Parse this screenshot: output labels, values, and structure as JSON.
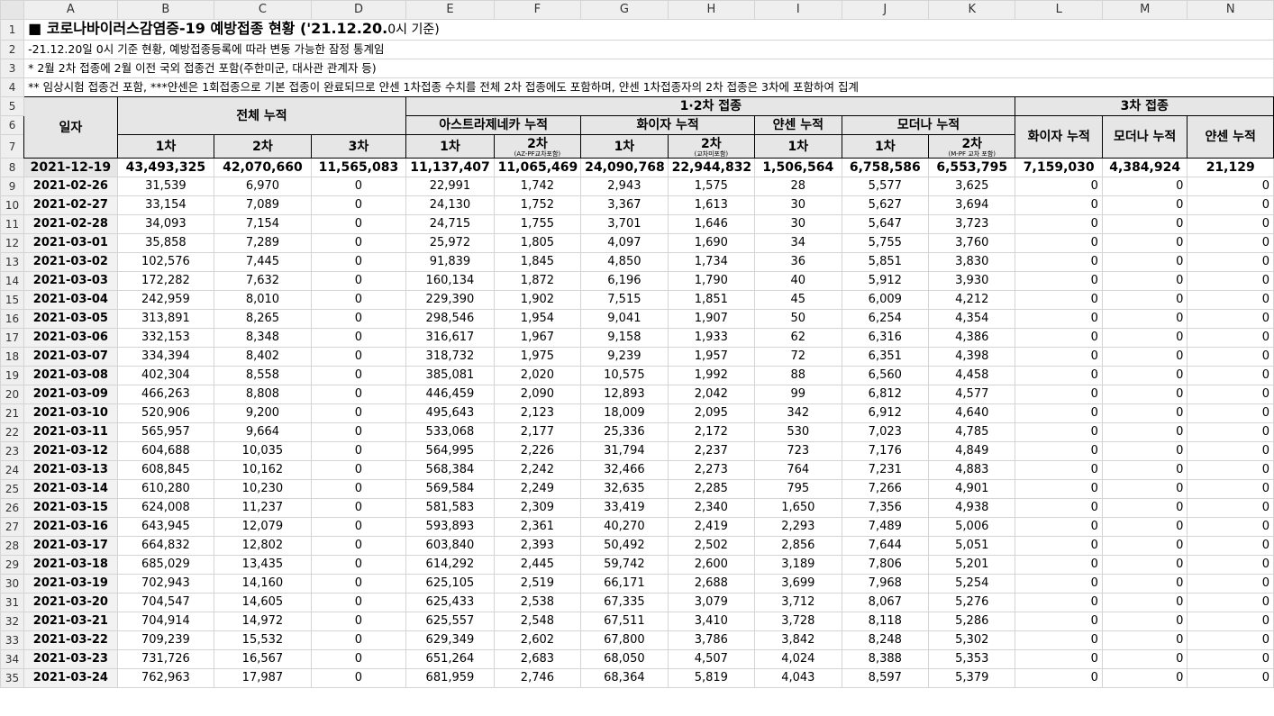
{
  "columns": [
    "A",
    "B",
    "C",
    "D",
    "E",
    "F",
    "G",
    "H",
    "I",
    "J",
    "K",
    "L",
    "M",
    "N"
  ],
  "title": {
    "square_icon": "■",
    "main": "코로나바이러스감염증-19 예방접종 현황 (",
    "date": "'21.12.20.",
    "tail": "0시 기준)"
  },
  "notes": [
    "-21.12.20일 0시 기준 현황, 예방접종등록에 따라 변동 가능한 잠정 통계임",
    " * 2월 2차 접종에 2월 이전 국외 접종건 포함(주한미군, 대사관 관계자 등)",
    "** 임상시험 접종건 포함, ***얀센은 1회접종으로 기본 접종이 완료되므로 얀센 1차접종 수치를 전체 2차 접종에도 포함하며, 얀센 1차접종자의 2차 접종은 3차에 포함하여 집계"
  ],
  "headers": {
    "date": "일자",
    "total_cum": "전체 누적",
    "dose12": "1·2차 접종",
    "dose3": "3차 접종",
    "az": "아스트라제네카 누적",
    "pfizer": "화이자 누적",
    "janssen": "얀센 누적",
    "moderna": "모더나 누적",
    "first": "1차",
    "second": "2차",
    "third": "3차",
    "az_note": "(AZ-PF교차포함)",
    "pf_note": "(교차미포함)",
    "md_note": "(M-PF 교차 포함)",
    "pfizer3": "화이자 누적",
    "moderna3": "모더나 누적",
    "janssen3": "얀센 누적"
  },
  "total": {
    "date": "2021-12-19",
    "values": [
      "43,493,325",
      "42,070,660",
      "11,565,083",
      "11,137,407",
      "11,065,469",
      "24,090,768",
      "22,944,832",
      "1,506,564",
      "6,758,586",
      "6,553,795",
      "7,159,030",
      "4,384,924",
      "21,129"
    ]
  },
  "rows": [
    {
      "date": "2021-02-26",
      "values": [
        "31,539",
        "6,970",
        "0",
        "22,991",
        "1,742",
        "2,943",
        "1,575",
        "28",
        "5,577",
        "3,625",
        "0",
        "0",
        "0"
      ]
    },
    {
      "date": "2021-02-27",
      "values": [
        "33,154",
        "7,089",
        "0",
        "24,130",
        "1,752",
        "3,367",
        "1,613",
        "30",
        "5,627",
        "3,694",
        "0",
        "0",
        "0"
      ]
    },
    {
      "date": "2021-02-28",
      "values": [
        "34,093",
        "7,154",
        "0",
        "24,715",
        "1,755",
        "3,701",
        "1,646",
        "30",
        "5,647",
        "3,723",
        "0",
        "0",
        "0"
      ]
    },
    {
      "date": "2021-03-01",
      "values": [
        "35,858",
        "7,289",
        "0",
        "25,972",
        "1,805",
        "4,097",
        "1,690",
        "34",
        "5,755",
        "3,760",
        "0",
        "0",
        "0"
      ]
    },
    {
      "date": "2021-03-02",
      "values": [
        "102,576",
        "7,445",
        "0",
        "91,839",
        "1,845",
        "4,850",
        "1,734",
        "36",
        "5,851",
        "3,830",
        "0",
        "0",
        "0"
      ]
    },
    {
      "date": "2021-03-03",
      "values": [
        "172,282",
        "7,632",
        "0",
        "160,134",
        "1,872",
        "6,196",
        "1,790",
        "40",
        "5,912",
        "3,930",
        "0",
        "0",
        "0"
      ]
    },
    {
      "date": "2021-03-04",
      "values": [
        "242,959",
        "8,010",
        "0",
        "229,390",
        "1,902",
        "7,515",
        "1,851",
        "45",
        "6,009",
        "4,212",
        "0",
        "0",
        "0"
      ]
    },
    {
      "date": "2021-03-05",
      "values": [
        "313,891",
        "8,265",
        "0",
        "298,546",
        "1,954",
        "9,041",
        "1,907",
        "50",
        "6,254",
        "4,354",
        "0",
        "0",
        "0"
      ]
    },
    {
      "date": "2021-03-06",
      "values": [
        "332,153",
        "8,348",
        "0",
        "316,617",
        "1,967",
        "9,158",
        "1,933",
        "62",
        "6,316",
        "4,386",
        "0",
        "0",
        "0"
      ]
    },
    {
      "date": "2021-03-07",
      "values": [
        "334,394",
        "8,402",
        "0",
        "318,732",
        "1,975",
        "9,239",
        "1,957",
        "72",
        "6,351",
        "4,398",
        "0",
        "0",
        "0"
      ]
    },
    {
      "date": "2021-03-08",
      "values": [
        "402,304",
        "8,558",
        "0",
        "385,081",
        "2,020",
        "10,575",
        "1,992",
        "88",
        "6,560",
        "4,458",
        "0",
        "0",
        "0"
      ]
    },
    {
      "date": "2021-03-09",
      "values": [
        "466,263",
        "8,808",
        "0",
        "446,459",
        "2,090",
        "12,893",
        "2,042",
        "99",
        "6,812",
        "4,577",
        "0",
        "0",
        "0"
      ]
    },
    {
      "date": "2021-03-10",
      "values": [
        "520,906",
        "9,200",
        "0",
        "495,643",
        "2,123",
        "18,009",
        "2,095",
        "342",
        "6,912",
        "4,640",
        "0",
        "0",
        "0"
      ]
    },
    {
      "date": "2021-03-11",
      "values": [
        "565,957",
        "9,664",
        "0",
        "533,068",
        "2,177",
        "25,336",
        "2,172",
        "530",
        "7,023",
        "4,785",
        "0",
        "0",
        "0"
      ]
    },
    {
      "date": "2021-03-12",
      "values": [
        "604,688",
        "10,035",
        "0",
        "564,995",
        "2,226",
        "31,794",
        "2,237",
        "723",
        "7,176",
        "4,849",
        "0",
        "0",
        "0"
      ]
    },
    {
      "date": "2021-03-13",
      "values": [
        "608,845",
        "10,162",
        "0",
        "568,384",
        "2,242",
        "32,466",
        "2,273",
        "764",
        "7,231",
        "4,883",
        "0",
        "0",
        "0"
      ]
    },
    {
      "date": "2021-03-14",
      "values": [
        "610,280",
        "10,230",
        "0",
        "569,584",
        "2,249",
        "32,635",
        "2,285",
        "795",
        "7,266",
        "4,901",
        "0",
        "0",
        "0"
      ]
    },
    {
      "date": "2021-03-15",
      "values": [
        "624,008",
        "11,237",
        "0",
        "581,583",
        "2,309",
        "33,419",
        "2,340",
        "1,650",
        "7,356",
        "4,938",
        "0",
        "0",
        "0"
      ]
    },
    {
      "date": "2021-03-16",
      "values": [
        "643,945",
        "12,079",
        "0",
        "593,893",
        "2,361",
        "40,270",
        "2,419",
        "2,293",
        "7,489",
        "5,006",
        "0",
        "0",
        "0"
      ]
    },
    {
      "date": "2021-03-17",
      "values": [
        "664,832",
        "12,802",
        "0",
        "603,840",
        "2,393",
        "50,492",
        "2,502",
        "2,856",
        "7,644",
        "5,051",
        "0",
        "0",
        "0"
      ]
    },
    {
      "date": "2021-03-18",
      "values": [
        "685,029",
        "13,435",
        "0",
        "614,292",
        "2,445",
        "59,742",
        "2,600",
        "3,189",
        "7,806",
        "5,201",
        "0",
        "0",
        "0"
      ]
    },
    {
      "date": "2021-03-19",
      "values": [
        "702,943",
        "14,160",
        "0",
        "625,105",
        "2,519",
        "66,171",
        "2,688",
        "3,699",
        "7,968",
        "5,254",
        "0",
        "0",
        "0"
      ]
    },
    {
      "date": "2021-03-20",
      "values": [
        "704,547",
        "14,605",
        "0",
        "625,433",
        "2,538",
        "67,335",
        "3,079",
        "3,712",
        "8,067",
        "5,276",
        "0",
        "0",
        "0"
      ]
    },
    {
      "date": "2021-03-21",
      "values": [
        "704,914",
        "14,972",
        "0",
        "625,557",
        "2,548",
        "67,511",
        "3,410",
        "3,728",
        "8,118",
        "5,286",
        "0",
        "0",
        "0"
      ]
    },
    {
      "date": "2021-03-22",
      "values": [
        "709,239",
        "15,532",
        "0",
        "629,349",
        "2,602",
        "67,800",
        "3,786",
        "3,842",
        "8,248",
        "5,302",
        "0",
        "0",
        "0"
      ]
    },
    {
      "date": "2021-03-23",
      "values": [
        "731,726",
        "16,567",
        "0",
        "651,264",
        "2,683",
        "68,050",
        "4,507",
        "4,024",
        "8,388",
        "5,353",
        "0",
        "0",
        "0"
      ]
    },
    {
      "date": "2021-03-24",
      "values": [
        "762,963",
        "17,987",
        "0",
        "681,959",
        "2,746",
        "68,364",
        "5,819",
        "4,043",
        "8,597",
        "5,379",
        "0",
        "0",
        "0"
      ]
    }
  ]
}
